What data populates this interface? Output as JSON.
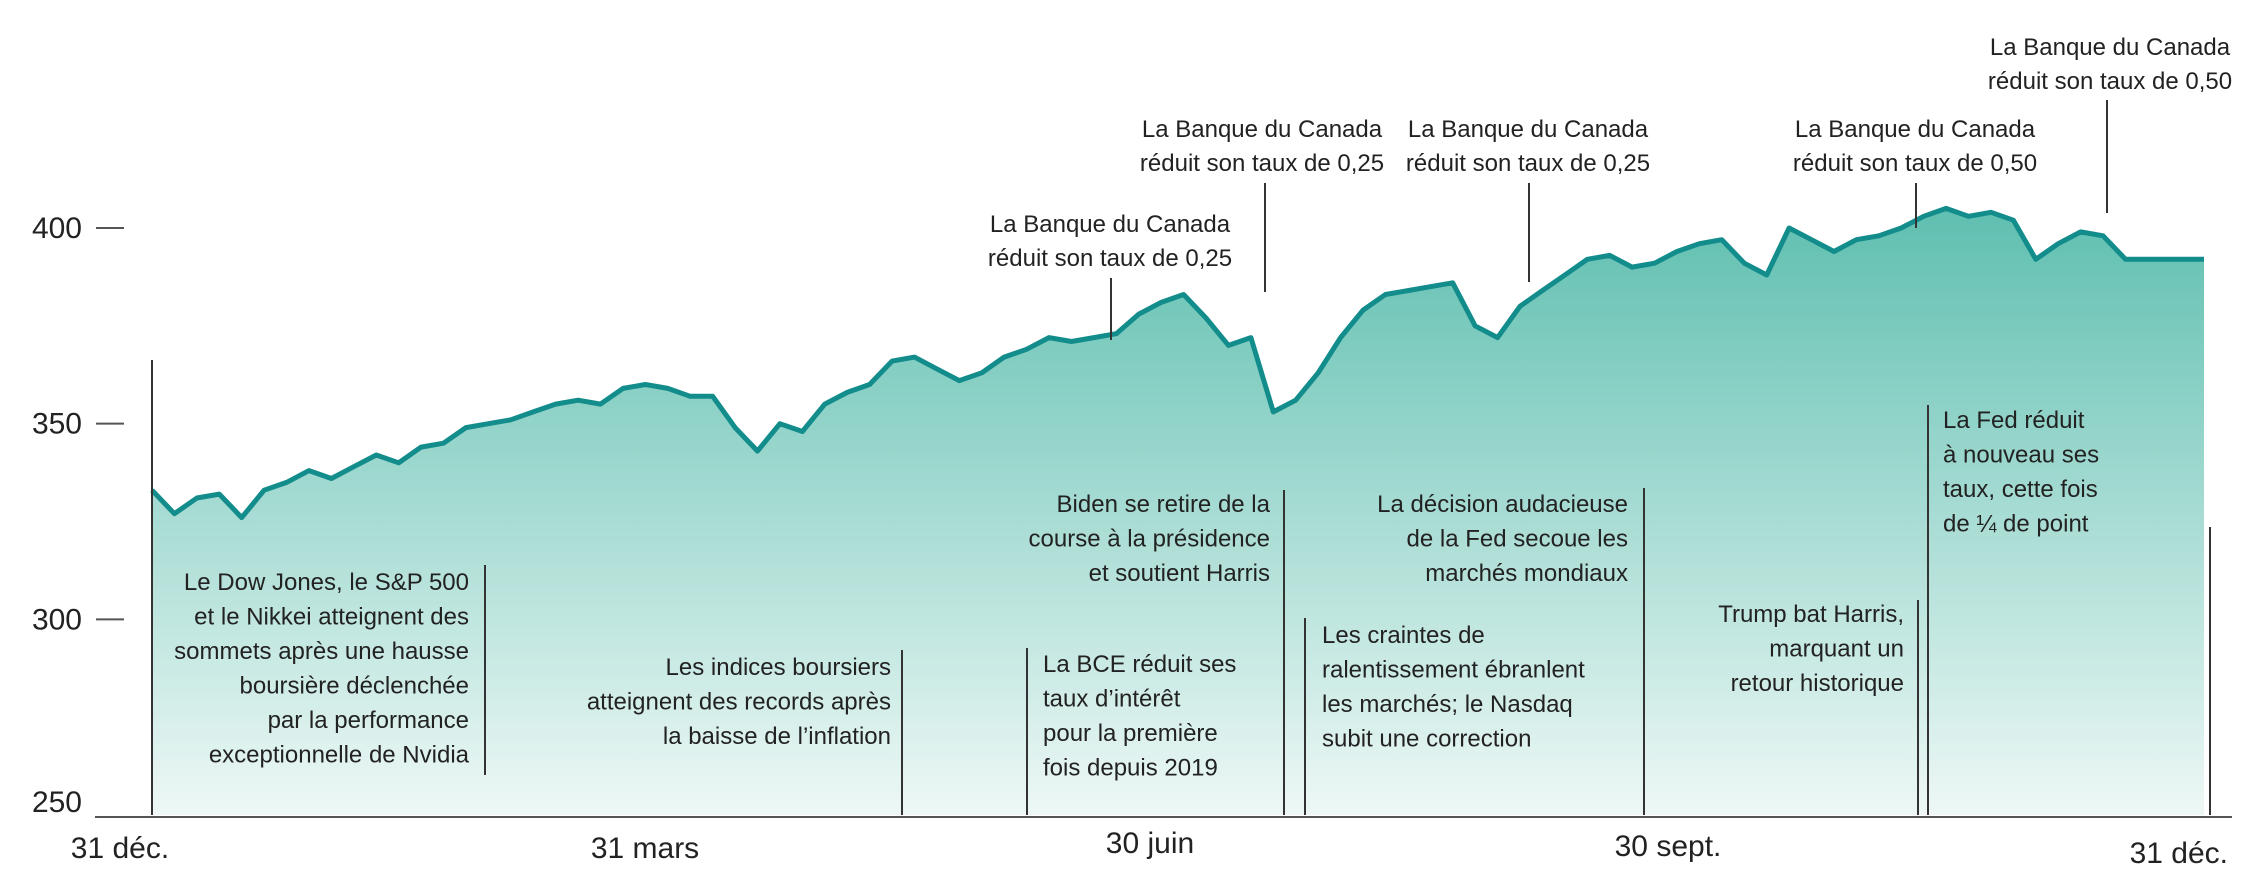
{
  "chart_data": {
    "type": "area",
    "title": "",
    "xlabel": "",
    "ylabel": "",
    "ylim": [
      250,
      410
    ],
    "yticks": [
      {
        "label": "250",
        "value": 250
      },
      {
        "label": "300",
        "value": 300
      },
      {
        "label": "350",
        "value": 350
      },
      {
        "label": "400",
        "value": 400
      }
    ],
    "xticks": [
      {
        "label": "31 déc.",
        "day": 0
      },
      {
        "label": "31 mars",
        "day": 91
      },
      {
        "label": "30 juin",
        "day": 182
      },
      {
        "label": "30 sept.",
        "day": 274
      },
      {
        "label": "31 déc.",
        "day": 366
      }
    ],
    "series": [
      {
        "name": "",
        "x": [
          0,
          4,
          8,
          12,
          16,
          20,
          24,
          28,
          32,
          36,
          40,
          44,
          48,
          52,
          56,
          60,
          64,
          68,
          72,
          76,
          80,
          84,
          88,
          92,
          96,
          100,
          104,
          108,
          112,
          116,
          120,
          124,
          128,
          132,
          136,
          140,
          144,
          148,
          152,
          156,
          160,
          164,
          168,
          172,
          176,
          180,
          184,
          188,
          192,
          196,
          200,
          204,
          208,
          212,
          216,
          220,
          224,
          228,
          232,
          236,
          240,
          244,
          248,
          252,
          256,
          260,
          264,
          268,
          272,
          276,
          280,
          284,
          288,
          292,
          296,
          300,
          304,
          308,
          312,
          316,
          320,
          324,
          328,
          332,
          336,
          340,
          344,
          348,
          352,
          356,
          360,
          364,
          366
        ],
        "values": [
          333,
          327,
          331,
          332,
          326,
          333,
          335,
          338,
          336,
          339,
          342,
          340,
          344,
          345,
          349,
          350,
          351,
          353,
          355,
          356,
          355,
          359,
          360,
          359,
          357,
          357,
          349,
          343,
          350,
          348,
          355,
          358,
          360,
          366,
          367,
          364,
          361,
          363,
          367,
          369,
          372,
          371,
          372,
          373,
          378,
          381,
          383,
          377,
          370,
          372,
          353,
          356,
          363,
          372,
          379,
          383,
          384,
          385,
          386,
          375,
          372,
          380,
          384,
          388,
          392,
          393,
          390,
          391,
          394,
          396,
          397,
          391,
          388,
          400,
          397,
          394,
          397,
          398,
          400,
          403,
          405,
          403,
          404,
          402,
          392,
          396,
          399,
          398,
          392,
          392,
          392,
          392,
          392
        ]
      }
    ],
    "annotations_above": [
      {
        "day": 155,
        "lines": [
          "La Banque du Canada",
          "réduit son taux de 0,25"
        ]
      },
      {
        "day": 210,
        "lines": [
          "La Banque du Canada",
          "réduit son taux de 0,25"
        ]
      },
      {
        "day": 252,
        "lines": [
          "La Banque du Canada",
          "réduit son taux de 0,25"
        ]
      },
      {
        "day": 314,
        "lines": [
          "La Banque du Canada",
          "réduit son taux de 0,50"
        ]
      },
      {
        "day": 343,
        "lines": [
          "La Banque du Canada",
          "réduit son taux de 0,50"
        ]
      }
    ],
    "annotations_below": [
      {
        "lines": [
          "Le Dow Jones, le S&P 500",
          "et le Nikkei atteignent des",
          "sommets après une hausse",
          "boursière déclenchée",
          "par la performance",
          "exceptionnelle de Nvidia"
        ]
      },
      {
        "lines": [
          "Les indices boursiers",
          "atteignent des records après",
          "la baisse de l’inflation"
        ]
      },
      {
        "lines": [
          "La BCE réduit ses",
          "taux d’intérêt",
          "pour la première",
          "fois depuis 2019"
        ]
      },
      {
        "lines": [
          "Biden se retire de la",
          "course à la présidence",
          "et soutient Harris"
        ]
      },
      {
        "lines": [
          "Les craintes de",
          "ralentissement ébranlent",
          "les marchés; le Nasdaq",
          "subit une correction"
        ]
      },
      {
        "lines": [
          "La décision audacieuse",
          "de la Fed secoue les",
          "marchés mondiaux"
        ]
      },
      {
        "lines": [
          "Trump bat Harris,",
          "marquant un",
          "retour historique"
        ]
      },
      {
        "lines": [
          "La Fed réduit",
          "à nouveau ses",
          "taux, cette fois",
          "de ¼ de point"
        ]
      }
    ],
    "colors": {
      "line": "#138c8c",
      "fill_top": "#5fbfb0",
      "fill_bottom": "#eef8f6",
      "axis": "#555555",
      "text": "#222222"
    },
    "grid": false,
    "legend": "none"
  }
}
